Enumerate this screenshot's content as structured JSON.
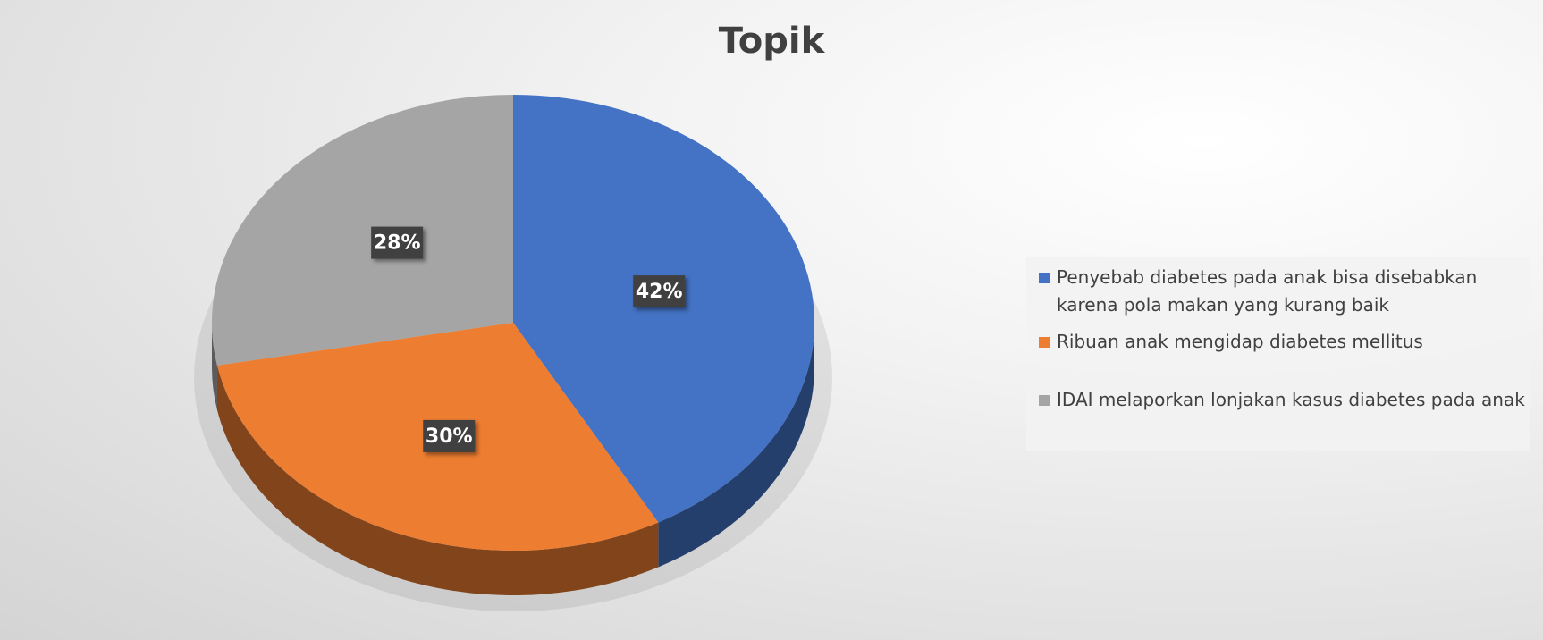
{
  "chart_data": {
    "type": "pie",
    "title": "Topik",
    "categories": [
      "Penyebab diabetes pada anak bisa disebabkan karena pola makan yang kurang baik",
      "Ribuan anak mengidap diabetes mellitus",
      "IDAI melaporkan lonjakan kasus diabetes pada anak"
    ],
    "values": [
      42,
      30,
      28
    ],
    "value_labels": [
      "42%",
      "30%",
      "28%"
    ],
    "colors": [
      "#4472c4",
      "#ed7d31",
      "#a5a5a5"
    ],
    "legend": "right"
  }
}
